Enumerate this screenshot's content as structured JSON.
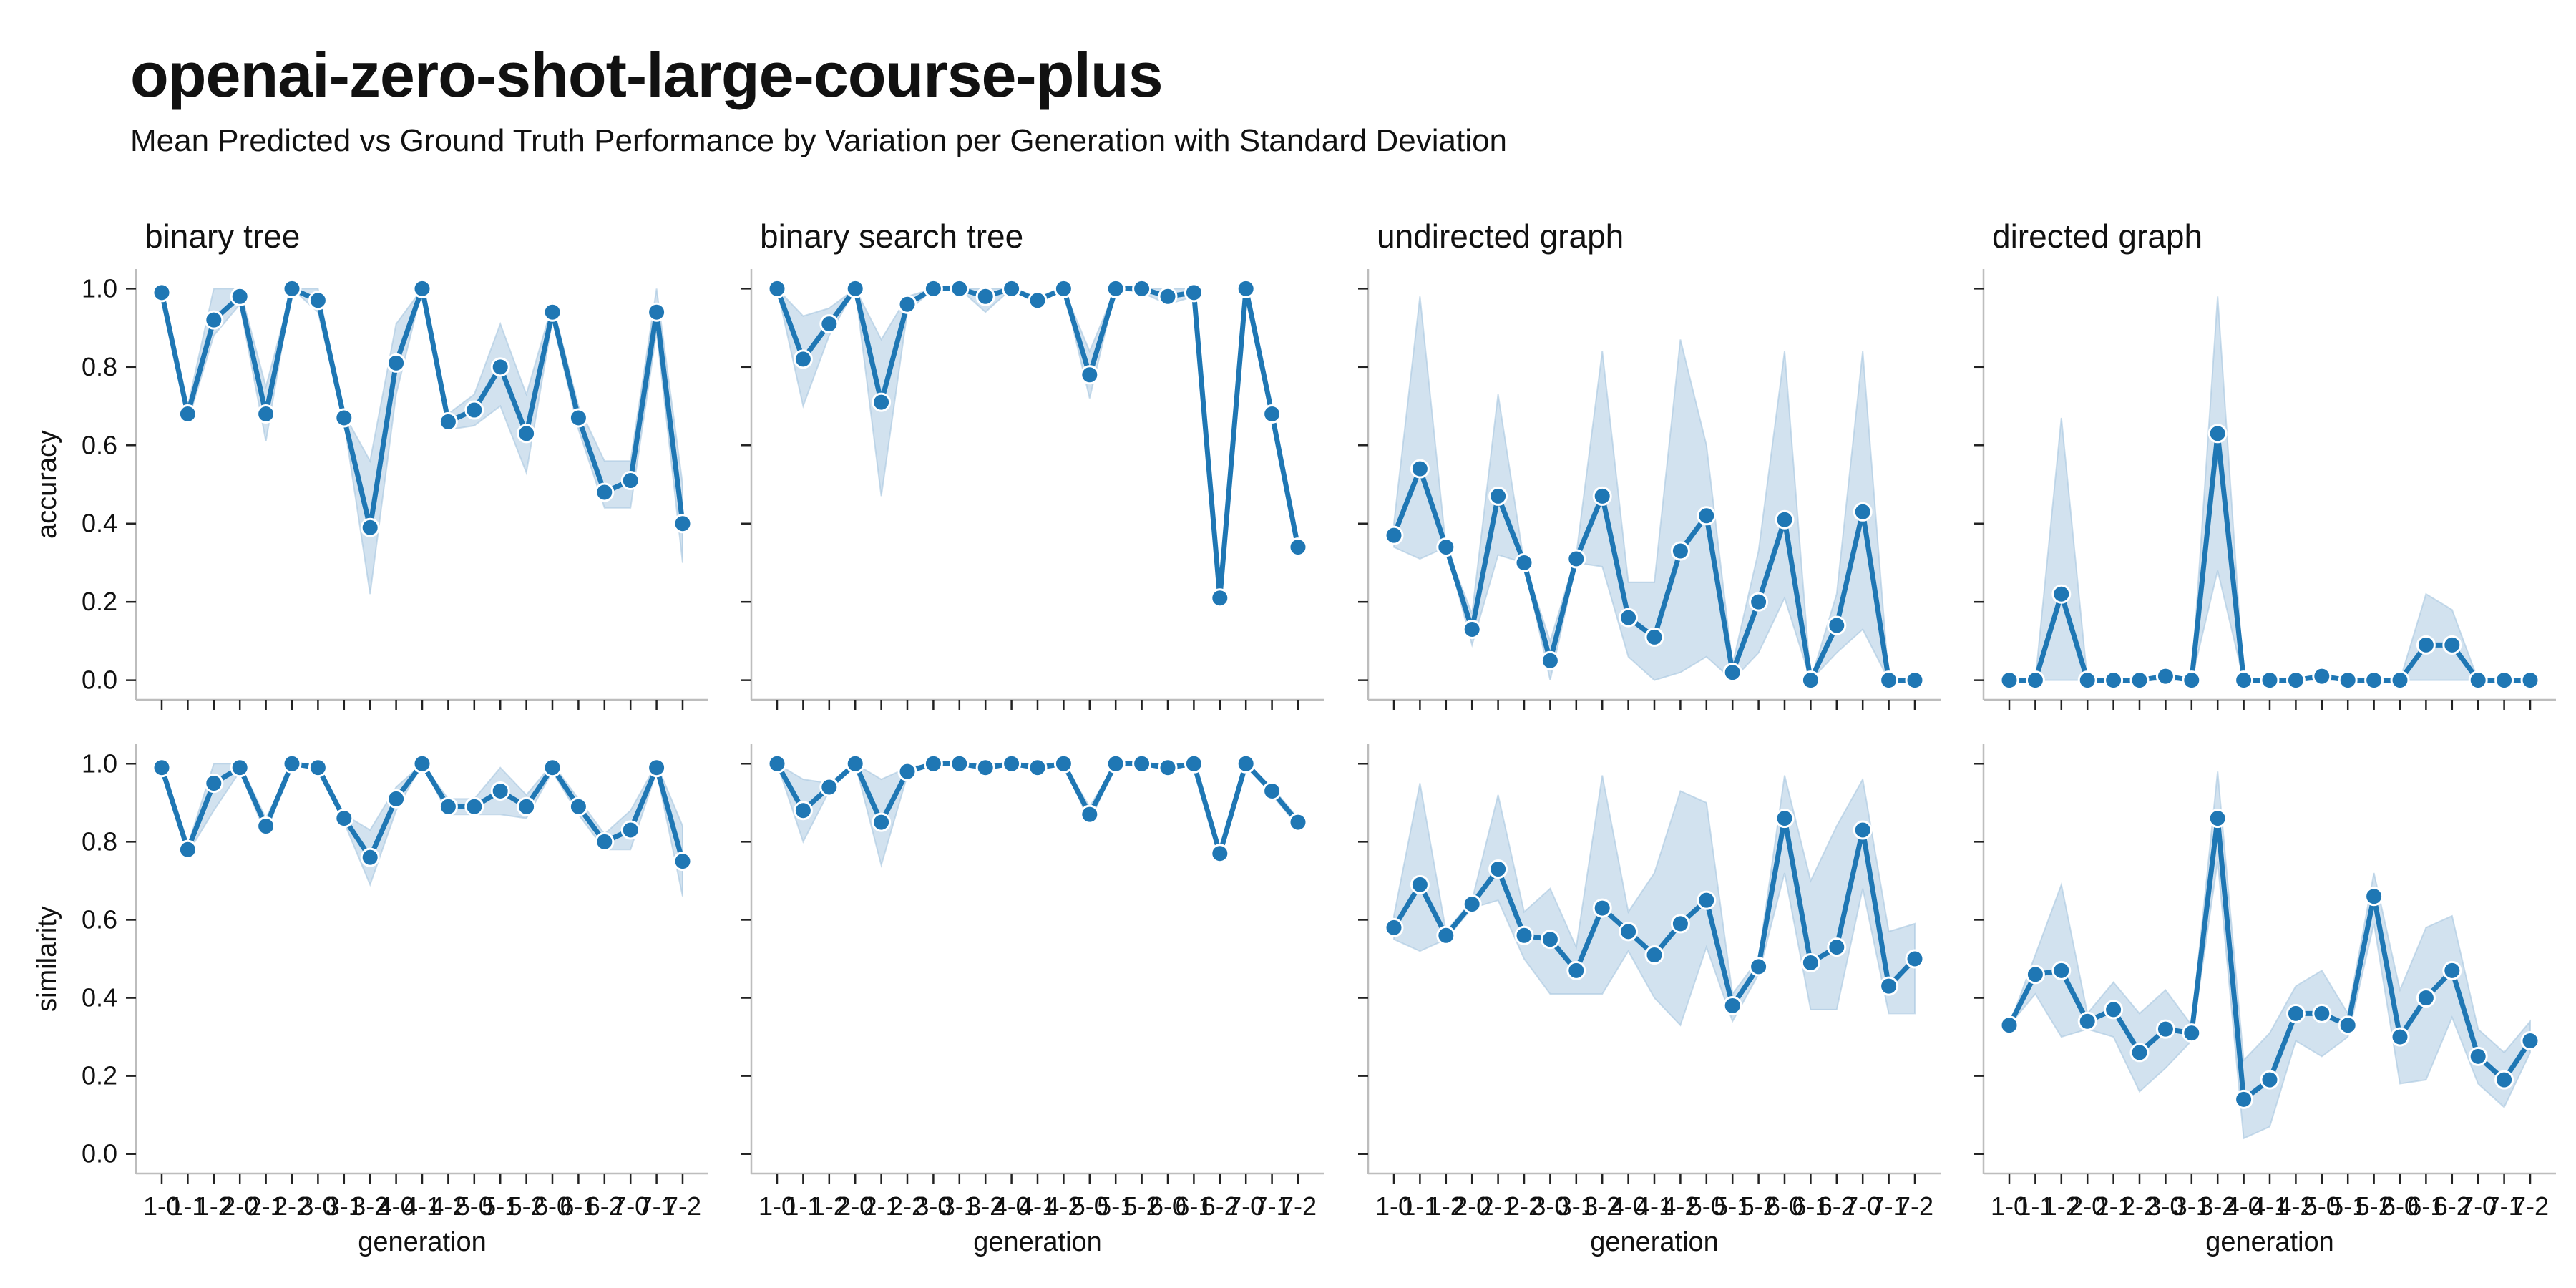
{
  "title": "openai-zero-shot-large-course-plus",
  "subtitle": "Mean Predicted vs Ground Truth Performance by Variation per Generation with Standard Deviation",
  "chart_data": {
    "type": "line",
    "x": [
      "1-0",
      "1-1",
      "1-2",
      "2-0",
      "2-1",
      "2-2",
      "3-0",
      "3-1",
      "3-2",
      "4-0",
      "4-1",
      "4-2",
      "5-0",
      "5-1",
      "5-2",
      "6-0",
      "6-1",
      "6-2",
      "7-0",
      "7-1",
      "7-2"
    ],
    "xlabel": "generation",
    "x_tick_labels": [
      "1-0",
      "1-1",
      "1-2",
      "2-0",
      "2-1",
      "2-2",
      "3-0",
      "3-1",
      "3-2",
      "4-0",
      "4-1",
      "4-2",
      "5-0",
      "5-1",
      "5-2",
      "6-0",
      "6-1",
      "6-2",
      "7-0",
      "7-1",
      "7-2"
    ],
    "ylim": [
      -0.05,
      1.05
    ],
    "y_ticks": [
      "0.0",
      "0.2",
      "0.4",
      "0.6",
      "0.8",
      "1.0"
    ],
    "y_tick_values": [
      0,
      0.2,
      0.4,
      0.6,
      0.8,
      1.0
    ],
    "grid": false,
    "color": "#1f77b4",
    "band_color": "#a6c6e0",
    "panels": [
      {
        "column": "binary tree",
        "metric": "accuracy",
        "values": [
          0.99,
          0.68,
          0.92,
          0.98,
          0.68,
          1.0,
          0.97,
          0.67,
          0.39,
          0.81,
          1.0,
          0.66,
          0.69,
          0.8,
          0.63,
          0.94,
          0.67,
          0.48,
          0.51,
          0.94,
          0.4
        ],
        "lower": [
          0.99,
          0.66,
          0.88,
          0.96,
          0.61,
          1.0,
          0.94,
          0.66,
          0.22,
          0.73,
          1.0,
          0.64,
          0.65,
          0.7,
          0.53,
          0.92,
          0.64,
          0.44,
          0.44,
          0.89,
          0.3
        ],
        "upper": [
          0.99,
          0.7,
          1.0,
          1.0,
          0.75,
          1.0,
          1.0,
          0.68,
          0.56,
          0.91,
          1.0,
          0.68,
          0.73,
          0.91,
          0.73,
          0.96,
          0.7,
          0.56,
          0.56,
          1.0,
          0.5
        ]
      },
      {
        "column": "binary search tree",
        "metric": "accuracy",
        "values": [
          1.0,
          0.82,
          0.91,
          1.0,
          0.71,
          0.96,
          1.0,
          1.0,
          0.98,
          1.0,
          0.97,
          1.0,
          0.78,
          1.0,
          1.0,
          0.98,
          0.99,
          0.21,
          1.0,
          0.68,
          0.34
        ],
        "lower": [
          1.0,
          0.7,
          0.88,
          1.0,
          0.47,
          0.94,
          1.0,
          1.0,
          0.94,
          1.0,
          0.96,
          1.0,
          0.72,
          1.0,
          0.99,
          0.96,
          0.98,
          0.21,
          1.0,
          0.67,
          0.33
        ],
        "upper": [
          1.0,
          0.93,
          0.95,
          1.0,
          0.87,
          0.98,
          1.0,
          1.0,
          1.0,
          1.0,
          0.98,
          1.0,
          0.84,
          1.0,
          1.0,
          1.0,
          1.0,
          0.21,
          1.0,
          0.69,
          0.35
        ]
      },
      {
        "column": "undirected graph",
        "metric": "accuracy",
        "values": [
          0.37,
          0.54,
          0.34,
          0.13,
          0.47,
          0.3,
          0.05,
          0.31,
          0.47,
          0.16,
          0.11,
          0.33,
          0.42,
          0.02,
          0.2,
          0.41,
          0.0,
          0.14,
          0.43,
          0.0,
          0.0
        ],
        "lower": [
          0.34,
          0.31,
          0.34,
          0.09,
          0.32,
          0.3,
          0.0,
          0.3,
          0.29,
          0.06,
          0.0,
          0.02,
          0.06,
          0.0,
          0.07,
          0.21,
          0.0,
          0.07,
          0.13,
          0.0,
          0.0
        ],
        "upper": [
          0.4,
          0.98,
          0.34,
          0.17,
          0.73,
          0.3,
          0.1,
          0.32,
          0.84,
          0.25,
          0.25,
          0.87,
          0.6,
          0.04,
          0.33,
          0.84,
          0.0,
          0.22,
          0.84,
          0.0,
          0.0
        ],
        "y_ticks_visible": false
      },
      {
        "column": "directed graph",
        "metric": "accuracy",
        "values": [
          0.0,
          0.0,
          0.22,
          0.0,
          0.0,
          0.0,
          0.01,
          0.0,
          0.63,
          0.0,
          0.0,
          0.0,
          0.01,
          0.0,
          0.0,
          0.0,
          0.09,
          0.09,
          0.0,
          0.0,
          0.0
        ],
        "lower": [
          0.0,
          0.0,
          0.0,
          0.0,
          0.0,
          0.0,
          0.0,
          0.0,
          0.28,
          0.0,
          0.0,
          0.0,
          0.0,
          0.0,
          0.0,
          0.0,
          0.0,
          0.0,
          0.0,
          0.0,
          0.0
        ],
        "upper": [
          0.0,
          0.0,
          0.67,
          0.0,
          0.0,
          0.0,
          0.02,
          0.0,
          0.98,
          0.0,
          0.0,
          0.0,
          0.02,
          0.0,
          0.0,
          0.0,
          0.22,
          0.18,
          0.0,
          0.0,
          0.0
        ]
      },
      {
        "column": "binary tree",
        "metric": "similarity",
        "values": [
          0.99,
          0.78,
          0.95,
          0.99,
          0.84,
          1.0,
          0.99,
          0.86,
          0.76,
          0.91,
          1.0,
          0.89,
          0.89,
          0.93,
          0.89,
          0.99,
          0.89,
          0.8,
          0.83,
          0.99,
          0.75
        ],
        "lower": [
          0.99,
          0.77,
          0.88,
          0.98,
          0.82,
          1.0,
          0.98,
          0.85,
          0.69,
          0.88,
          1.0,
          0.87,
          0.87,
          0.87,
          0.86,
          0.98,
          0.87,
          0.78,
          0.78,
          0.98,
          0.66
        ],
        "upper": [
          0.99,
          0.79,
          1.0,
          1.0,
          0.86,
          1.0,
          1.0,
          0.87,
          0.83,
          0.94,
          1.0,
          0.91,
          0.91,
          0.99,
          0.92,
          1.0,
          0.91,
          0.82,
          0.88,
          1.0,
          0.84
        ]
      },
      {
        "column": "binary search tree",
        "metric": "similarity",
        "values": [
          1.0,
          0.88,
          0.94,
          1.0,
          0.85,
          0.98,
          1.0,
          1.0,
          0.99,
          1.0,
          0.99,
          1.0,
          0.87,
          1.0,
          1.0,
          0.99,
          1.0,
          0.77,
          1.0,
          0.93,
          0.85
        ],
        "lower": [
          1.0,
          0.8,
          0.93,
          1.0,
          0.74,
          0.97,
          1.0,
          1.0,
          0.98,
          1.0,
          0.98,
          1.0,
          0.85,
          1.0,
          1.0,
          0.98,
          1.0,
          0.77,
          1.0,
          0.92,
          0.84
        ],
        "upper": [
          1.0,
          0.96,
          0.95,
          1.0,
          0.96,
          0.99,
          1.0,
          1.0,
          1.0,
          1.0,
          1.0,
          1.0,
          0.89,
          1.0,
          1.0,
          1.0,
          1.0,
          0.77,
          1.0,
          0.94,
          0.86
        ]
      },
      {
        "column": "undirected graph",
        "metric": "similarity",
        "values": [
          0.58,
          0.69,
          0.56,
          0.64,
          0.73,
          0.56,
          0.55,
          0.47,
          0.63,
          0.57,
          0.51,
          0.59,
          0.65,
          0.38,
          0.48,
          0.86,
          0.49,
          0.53,
          0.83,
          0.43,
          0.5
        ],
        "lower": [
          0.55,
          0.52,
          0.55,
          0.63,
          0.65,
          0.5,
          0.41,
          0.41,
          0.41,
          0.52,
          0.4,
          0.33,
          0.53,
          0.34,
          0.46,
          0.72,
          0.37,
          0.37,
          0.68,
          0.36,
          0.36
        ],
        "upper": [
          0.61,
          0.95,
          0.57,
          0.65,
          0.92,
          0.62,
          0.68,
          0.53,
          0.97,
          0.62,
          0.72,
          0.93,
          0.9,
          0.41,
          0.5,
          0.97,
          0.7,
          0.84,
          0.96,
          0.57,
          0.59
        ]
      },
      {
        "column": "directed graph",
        "metric": "similarity",
        "values": [
          0.33,
          0.46,
          0.47,
          0.34,
          0.37,
          0.26,
          0.32,
          0.31,
          0.86,
          0.14,
          0.19,
          0.36,
          0.36,
          0.33,
          0.66,
          0.3,
          0.4,
          0.47,
          0.25,
          0.19,
          0.29
        ],
        "lower": [
          0.33,
          0.41,
          0.3,
          0.32,
          0.3,
          0.16,
          0.22,
          0.29,
          0.75,
          0.04,
          0.07,
          0.29,
          0.25,
          0.3,
          0.59,
          0.18,
          0.19,
          0.35,
          0.18,
          0.12,
          0.26
        ],
        "upper": [
          0.33,
          0.51,
          0.69,
          0.36,
          0.44,
          0.36,
          0.42,
          0.33,
          0.98,
          0.24,
          0.31,
          0.43,
          0.47,
          0.36,
          0.72,
          0.42,
          0.58,
          0.61,
          0.32,
          0.26,
          0.34
        ]
      }
    ]
  }
}
